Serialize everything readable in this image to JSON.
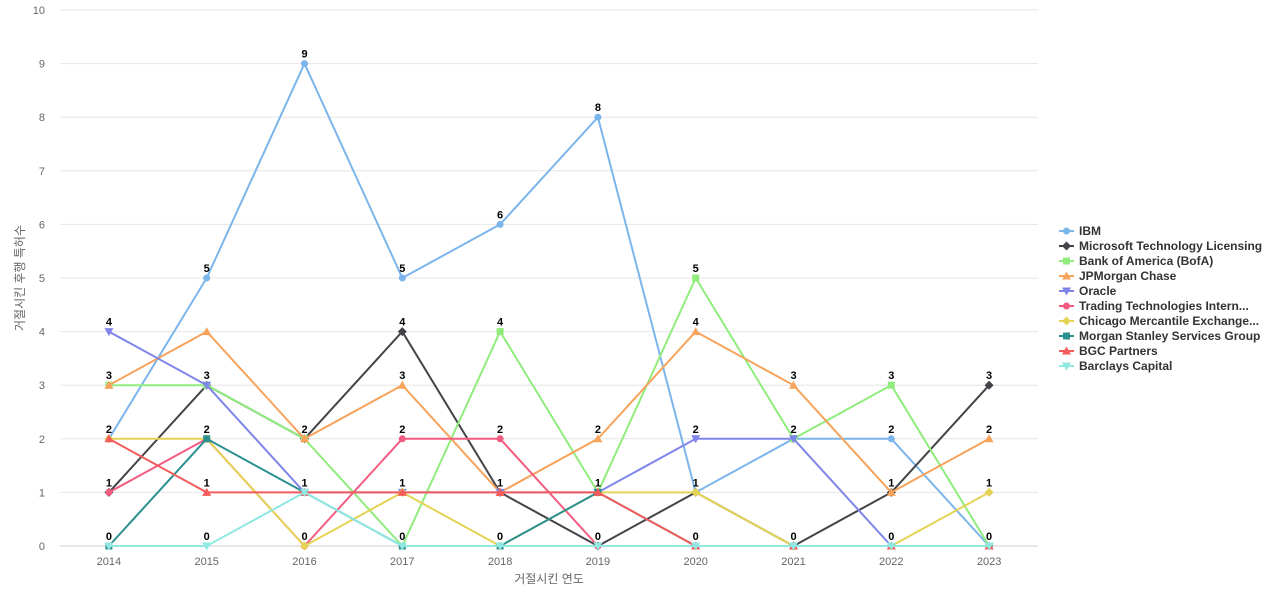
{
  "chart_data": {
    "type": "line",
    "title": "",
    "xlabel": "거절시킨 연도",
    "ylabel": "거절시킨 후행 특허수",
    "x": [
      "2014",
      "2015",
      "2016",
      "2017",
      "2018",
      "2019",
      "2020",
      "2021",
      "2022",
      "2023"
    ],
    "ylim": [
      0,
      10
    ],
    "yticks": [
      0,
      1,
      2,
      3,
      4,
      5,
      6,
      7,
      8,
      9,
      10
    ],
    "grid": true,
    "legend_position": "right",
    "series": [
      {
        "name": "IBM",
        "color": "#7cb5ec",
        "marker": "circle",
        "values": [
          2,
          5,
          9,
          5,
          6,
          8,
          1,
          2,
          2,
          0
        ]
      },
      {
        "name": "Microsoft Technology Licensing",
        "color": "#434348",
        "marker": "diamond",
        "values": [
          1,
          3,
          2,
          4,
          1,
          0,
          1,
          0,
          1,
          3
        ]
      },
      {
        "name": "Bank of America (BofA)",
        "color": "#90ed7d",
        "marker": "square",
        "values": [
          3,
          3,
          2,
          0,
          4,
          1,
          5,
          2,
          3,
          0
        ]
      },
      {
        "name": "JPMorgan Chase",
        "color": "#f7a35c",
        "marker": "triangle",
        "values": [
          3,
          4,
          2,
          3,
          1,
          2,
          4,
          3,
          1,
          2
        ]
      },
      {
        "name": "Oracle",
        "color": "#8085e9",
        "marker": "triangle-down",
        "values": [
          4,
          3,
          1,
          1,
          1,
          1,
          2,
          2,
          0,
          0
        ]
      },
      {
        "name": "Trading Technologies Intern...",
        "color": "#f15c80",
        "marker": "circle",
        "values": [
          1,
          2,
          0,
          2,
          2,
          0,
          0,
          0,
          0,
          0
        ]
      },
      {
        "name": "Chicago Mercantile Exchange...",
        "color": "#e4d354",
        "marker": "diamond",
        "values": [
          2,
          2,
          0,
          1,
          0,
          1,
          1,
          0,
          0,
          1
        ]
      },
      {
        "name": "Morgan Stanley Services Group",
        "color": "#2b908f",
        "marker": "square",
        "values": [
          0,
          2,
          1,
          0,
          0,
          1,
          0,
          0,
          0,
          0
        ]
      },
      {
        "name": "BGC Partners",
        "color": "#f45b5b",
        "marker": "triangle",
        "values": [
          2,
          1,
          1,
          1,
          1,
          1,
          0,
          0,
          0,
          0
        ]
      },
      {
        "name": "Barclays Capital",
        "color": "#91e8e1",
        "marker": "triangle-down",
        "values": [
          0,
          0,
          1,
          0,
          0,
          0,
          0,
          0,
          0,
          0
        ]
      }
    ],
    "data_labels": [
      [
        {
          "v": "4"
        },
        {
          "v": "3"
        },
        {
          "v": "2"
        },
        {
          "v": "1"
        },
        {
          "v": "0"
        }
      ],
      [
        {
          "v": "5"
        },
        {
          "v": "3"
        },
        {
          "v": "2"
        },
        {
          "v": "1"
        },
        {
          "v": "0"
        }
      ],
      [
        {
          "v": "9"
        },
        {
          "v": "2"
        },
        {
          "v": "1"
        },
        {
          "v": "0"
        }
      ],
      [
        {
          "v": "5"
        },
        {
          "v": "4"
        },
        {
          "v": "3"
        },
        {
          "v": "2"
        },
        {
          "v": "1"
        },
        {
          "v": "0"
        }
      ],
      [
        {
          "v": "6"
        },
        {
          "v": "4"
        },
        {
          "v": "2"
        },
        {
          "v": "1"
        },
        {
          "v": "0"
        }
      ],
      [
        {
          "v": "8"
        },
        {
          "v": "2"
        },
        {
          "v": "1"
        },
        {
          "v": "0"
        }
      ],
      [
        {
          "v": "5"
        },
        {
          "v": "4"
        },
        {
          "v": "2"
        },
        {
          "v": "1"
        },
        {
          "v": "0"
        }
      ],
      [
        {
          "v": "3"
        },
        {
          "v": "2"
        },
        {
          "v": "0"
        }
      ],
      [
        {
          "v": "3"
        },
        {
          "v": "2"
        },
        {
          "v": "1"
        },
        {
          "v": "0"
        }
      ],
      [
        {
          "v": "3"
        },
        {
          "v": "2"
        },
        {
          "v": "1"
        },
        {
          "v": "0"
        }
      ]
    ]
  }
}
